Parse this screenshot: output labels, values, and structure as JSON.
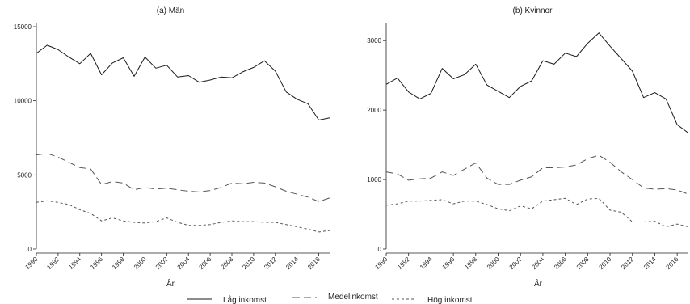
{
  "chart_data": [
    {
      "type": "line",
      "title": "(a) Män",
      "xlabel": "År",
      "ylabel": "",
      "x": [
        1990,
        1991,
        1992,
        1993,
        1994,
        1995,
        1996,
        1997,
        1998,
        1999,
        2000,
        2001,
        2002,
        2003,
        2004,
        2005,
        2006,
        2007,
        2008,
        2009,
        2010,
        2011,
        2012,
        2013,
        2014,
        2015,
        2016,
        2017
      ],
      "ylim": [
        0,
        15000
      ],
      "yticks": [
        0,
        5000,
        10000,
        15000
      ],
      "xticks": [
        1990,
        1992,
        1994,
        1996,
        1998,
        2000,
        2002,
        2004,
        2006,
        2008,
        2010,
        2012,
        2014,
        2016
      ],
      "grid": false,
      "series": [
        {
          "name": "Låg inkomst",
          "values": [
            13200,
            13750,
            13450,
            12950,
            12500,
            13200,
            11750,
            12550,
            12900,
            11650,
            12950,
            12200,
            12400,
            11600,
            11700,
            11250,
            11400,
            11600,
            11550,
            11950,
            12250,
            12700,
            12000,
            10600,
            10100,
            9800,
            8700,
            8850
          ]
        },
        {
          "name": "Medelinkomst",
          "values": [
            6350,
            6450,
            6200,
            5850,
            5500,
            5400,
            4350,
            4550,
            4450,
            4000,
            4150,
            4050,
            4100,
            4000,
            3900,
            3850,
            3950,
            4150,
            4450,
            4400,
            4500,
            4450,
            4200,
            3900,
            3700,
            3500,
            3200,
            3450
          ]
        },
        {
          "name": "Hög inkomst",
          "values": [
            3150,
            3250,
            3150,
            3000,
            2650,
            2400,
            1900,
            2100,
            1900,
            1800,
            1750,
            1850,
            2100,
            1800,
            1600,
            1600,
            1650,
            1800,
            1900,
            1850,
            1850,
            1800,
            1800,
            1650,
            1500,
            1350,
            1150,
            1250
          ]
        }
      ]
    },
    {
      "type": "line",
      "title": "(b) Kvinnor",
      "xlabel": "År",
      "ylabel": "",
      "x": [
        1990,
        1991,
        1992,
        1993,
        1994,
        1995,
        1996,
        1997,
        1998,
        1999,
        2000,
        2001,
        2002,
        2003,
        2004,
        2005,
        2006,
        2007,
        2008,
        2009,
        2010,
        2011,
        2012,
        2013,
        2014,
        2015,
        2016,
        2017
      ],
      "ylim": [
        0,
        3200
      ],
      "yticks": [
        0,
        1000,
        2000,
        3000
      ],
      "xticks": [
        1990,
        1992,
        1994,
        1996,
        1998,
        2000,
        2002,
        2004,
        2006,
        2008,
        2010,
        2012,
        2014,
        2016
      ],
      "grid": false,
      "series": [
        {
          "name": "Låg inkomst",
          "values": [
            2370,
            2460,
            2260,
            2160,
            2240,
            2600,
            2450,
            2510,
            2660,
            2360,
            2270,
            2180,
            2340,
            2420,
            2710,
            2660,
            2820,
            2770,
            2960,
            3110,
            2920,
            2740,
            2560,
            2180,
            2250,
            2160,
            1790,
            1670
          ]
        },
        {
          "name": "Medelinkomst",
          "values": [
            1110,
            1080,
            990,
            1010,
            1020,
            1110,
            1060,
            1150,
            1240,
            1020,
            930,
            930,
            990,
            1040,
            1170,
            1170,
            1180,
            1210,
            1300,
            1350,
            1250,
            1110,
            1000,
            880,
            860,
            870,
            850,
            790
          ]
        },
        {
          "name": "Hög inkomst",
          "values": [
            630,
            650,
            690,
            690,
            700,
            710,
            650,
            690,
            690,
            640,
            580,
            550,
            620,
            580,
            690,
            710,
            730,
            640,
            720,
            730,
            560,
            530,
            390,
            390,
            400,
            320,
            360,
            320
          ]
        }
      ]
    }
  ],
  "legend": {
    "placement": "bottom",
    "items": [
      {
        "label": "Låg inkomst",
        "dash": "solid"
      },
      {
        "label": "Medelinkomst",
        "dash": "longdash"
      },
      {
        "label": "Hög inkomst",
        "dash": "dash"
      }
    ]
  },
  "colors": {
    "line": "#1a1a1a",
    "axis": "#222222",
    "background": "#ffffff"
  }
}
